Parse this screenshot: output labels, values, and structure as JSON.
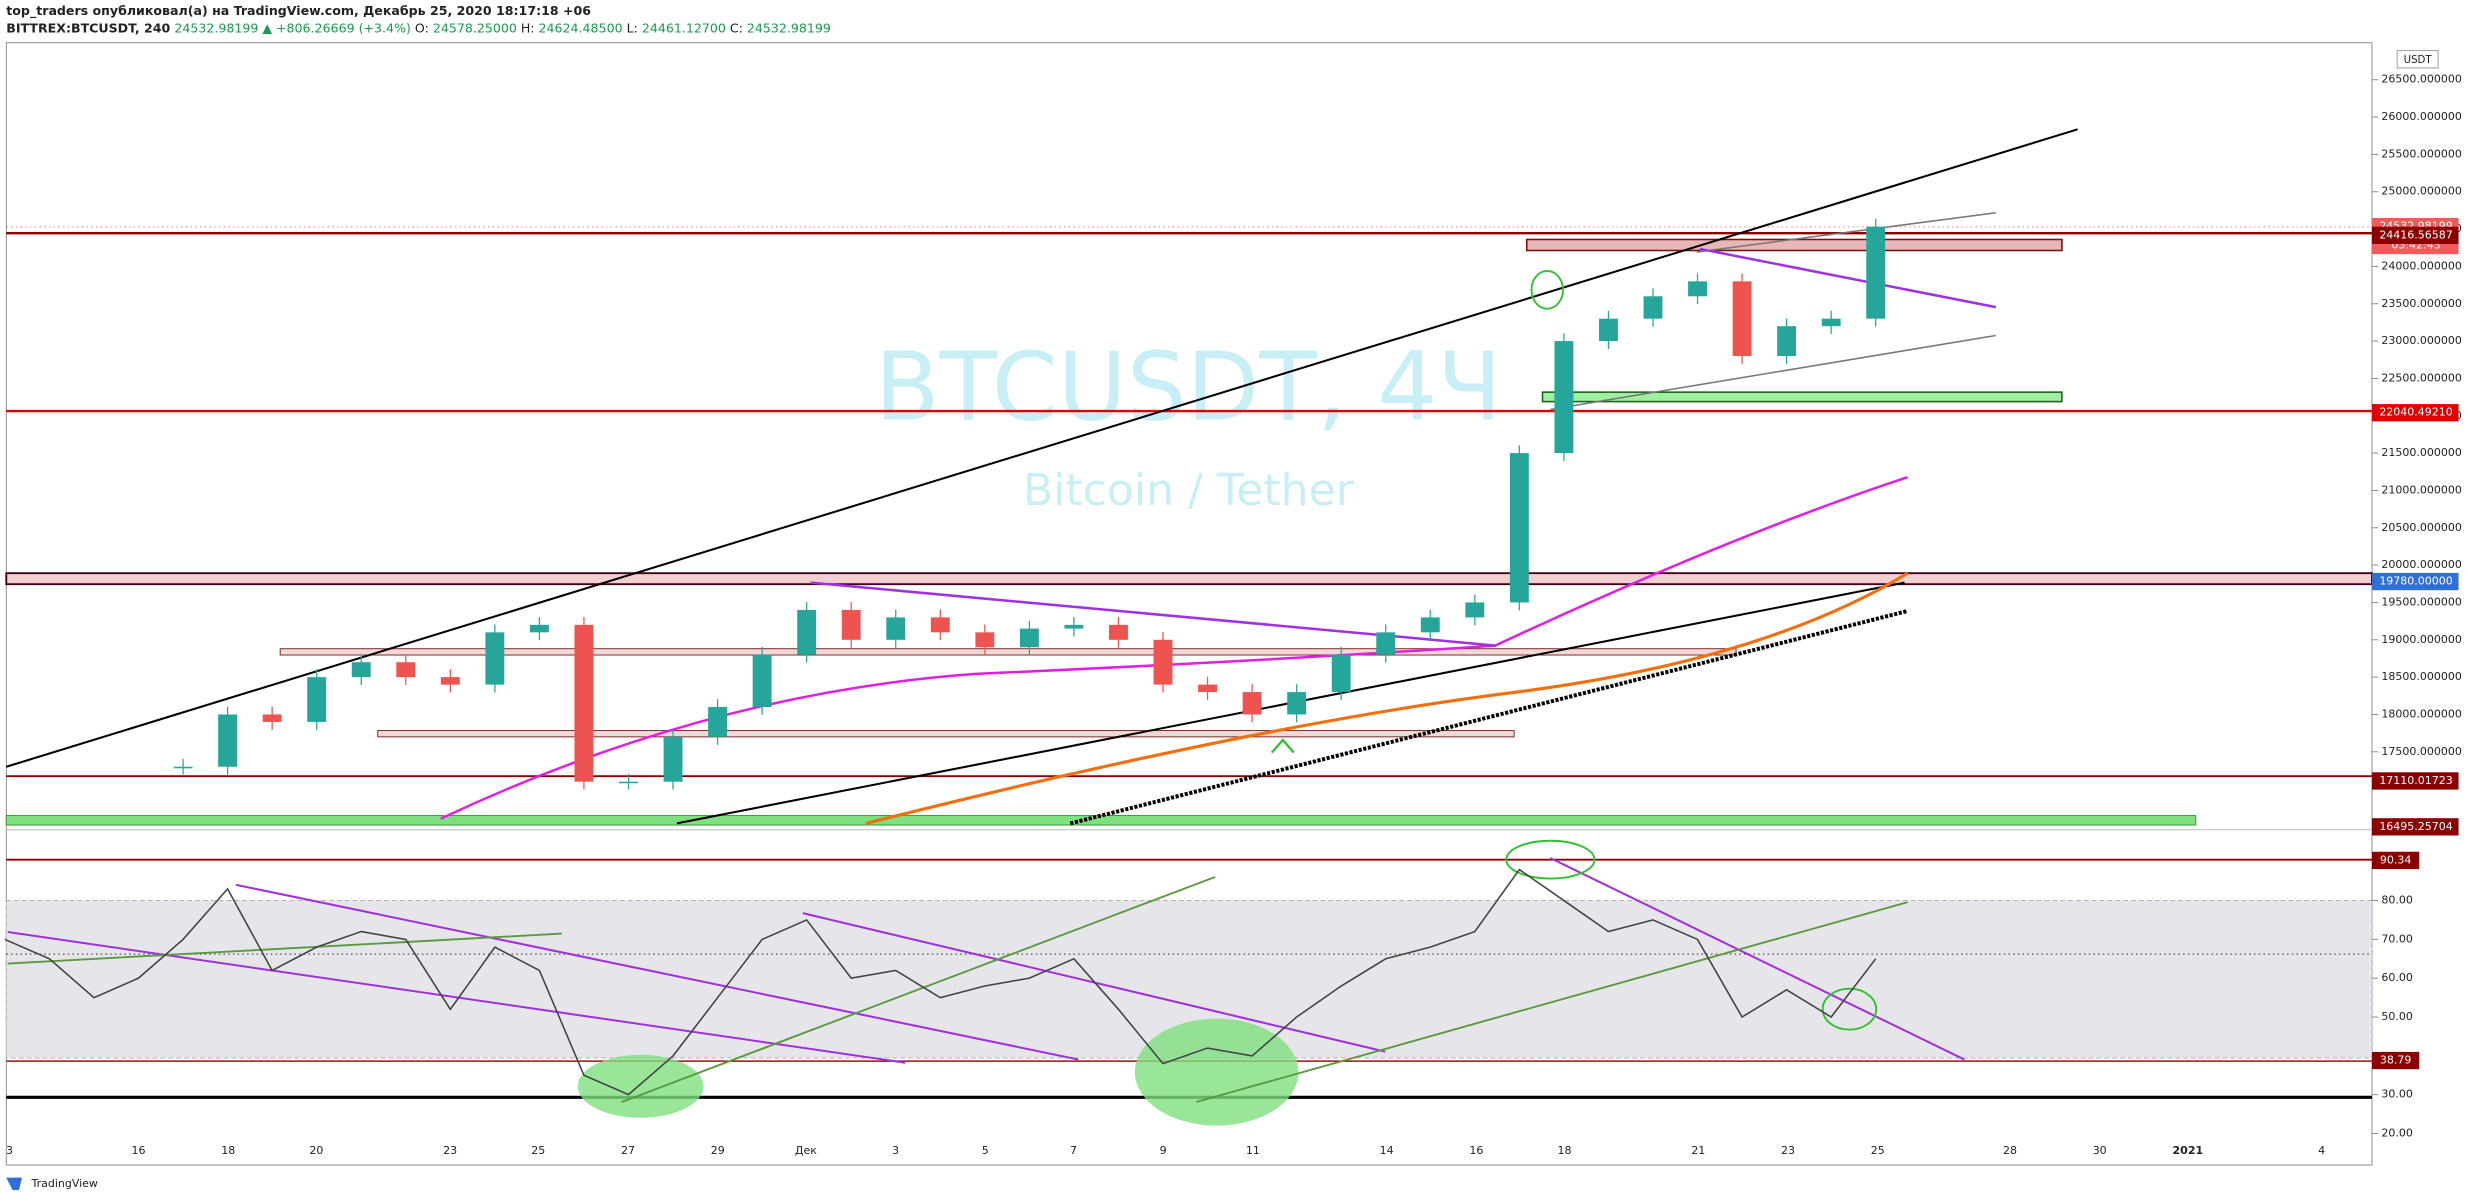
{
  "header": {
    "line1": "top_traders опубликовал(а) на TradingView.com, Декабрь 25, 2020 18:17:18 +06",
    "symbol": "BITTREX:BTCUSDT, 240",
    "last": "24532.98199",
    "change": "▲ +806.26669 (+3.4%)",
    "ohlc": [
      {
        "key": "O:",
        "value": "24578.25000"
      },
      {
        "key": "H:",
        "value": "24624.48500"
      },
      {
        "key": "L:",
        "value": "24461.12700"
      },
      {
        "key": "C:",
        "value": "24532.98199"
      }
    ]
  },
  "chart": {
    "currency": "USDT",
    "watermark": "BTCUSDT, 4Ч",
    "watermark_sub": "Bitcoin / Tether",
    "price_ticks": [
      {
        "value": 26500,
        "label": "26500.000000"
      },
      {
        "value": 26000,
        "label": "26000.000000"
      },
      {
        "value": 25500,
        "label": "25500.000000"
      },
      {
        "value": 25000,
        "label": "25000.000000"
      },
      {
        "value": 24500,
        "label": "24500.000000"
      },
      {
        "value": 24000,
        "label": "24000.000000"
      },
      {
        "value": 23500,
        "label": "23500.000000"
      },
      {
        "value": 23000,
        "label": "23000.000000"
      },
      {
        "value": 22500,
        "label": "22500.000000"
      },
      {
        "value": 22000,
        "label": "22000.000000"
      },
      {
        "value": 21500,
        "label": "21500.000000"
      },
      {
        "value": 21000,
        "label": "21000.000000"
      },
      {
        "value": 20500,
        "label": "20500.000000"
      },
      {
        "value": 20000,
        "label": "20000.000000"
      },
      {
        "value": 19500,
        "label": "19500.000000"
      },
      {
        "value": 19000,
        "label": "19000.000000"
      },
      {
        "value": 18500,
        "label": "18500.000000"
      },
      {
        "value": 18000,
        "label": "18000.000000"
      },
      {
        "value": 17500,
        "label": "17500.000000"
      }
    ],
    "price_tags": [
      {
        "value": 24532.98199,
        "label": "24532.98199",
        "color": "#f05a5a"
      },
      {
        "label": "03:42:43",
        "color": "#f05a5a"
      },
      {
        "value": 24416.56587,
        "label": "24416.56587",
        "color": "#8b0000"
      },
      {
        "value": 22040.4921,
        "label": "22040.49210",
        "color": "#e00000"
      },
      {
        "value": 19780,
        "label": "19780.00000",
        "color": "#2f6fd6"
      },
      {
        "value": 17110.01723,
        "label": "17110.01723",
        "color": "#8b0000"
      },
      {
        "value": 16495.25704,
        "label": "16495.25704",
        "color": "#8b0000"
      }
    ],
    "closes": [
      17300,
      18000,
      17900,
      18500,
      18700,
      18500,
      18400,
      19100,
      19200,
      17100,
      17100,
      17700,
      18100,
      18800,
      19400,
      19000,
      19300,
      19100,
      18900,
      19150,
      19200,
      19000,
      18400,
      18300,
      18000,
      18300,
      18800,
      19100,
      19300,
      19500,
      21500,
      23000,
      23300,
      23600,
      23800,
      22800,
      23200,
      23300,
      24532.98199
    ],
    "rsi_ticks": [
      {
        "value": 80,
        "label": "80.00"
      },
      {
        "value": 70,
        "label": "70.00"
      },
      {
        "value": 60,
        "label": "60.00"
      },
      {
        "value": 50,
        "label": "50.00"
      },
      {
        "value": 30,
        "label": "30.00"
      },
      {
        "value": 20,
        "label": "20.00"
      }
    ],
    "rsi_tags": [
      {
        "value": 90.34,
        "label": "90.34"
      },
      {
        "value": 38.79,
        "label": "38.79"
      }
    ],
    "rsi": [
      70,
      65,
      55,
      60,
      70,
      83,
      62,
      68,
      72,
      70,
      52,
      68,
      62,
      35,
      30,
      40,
      55,
      70,
      75,
      60,
      62,
      55,
      58,
      60,
      65,
      52,
      38,
      42,
      40,
      50,
      58,
      65,
      68,
      72,
      88,
      80,
      72,
      75,
      70,
      50,
      57,
      50,
      65
    ],
    "time_labels": [
      "3",
      "16",
      "18",
      "20",
      "23",
      "25",
      "27",
      "29",
      "Дек",
      "3",
      "5",
      "7",
      "9",
      "11",
      "14",
      "16",
      "18",
      "21",
      "23",
      "25",
      "28",
      "30",
      "2021",
      "4"
    ]
  },
  "footer": "TradingView"
}
